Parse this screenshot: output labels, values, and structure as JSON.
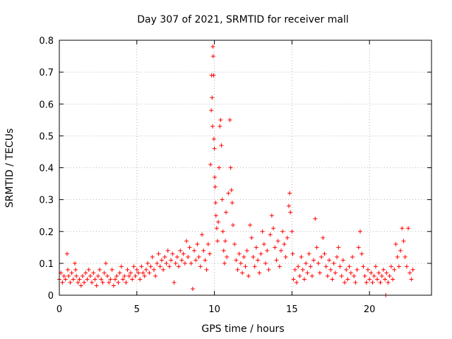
{
  "chart_data": {
    "type": "scatter",
    "title": "Day 307 of 2021, SRMTID for receiver mall",
    "xlabel": "GPS time / hours",
    "ylabel": "SRMTID / TECUs",
    "xlim": [
      0,
      24
    ],
    "ylim": [
      0,
      0.8
    ],
    "xticks": [
      "0",
      "5",
      "10",
      "15",
      "20"
    ],
    "xtick_values": [
      0,
      5,
      10,
      15,
      20
    ],
    "yticks": [
      "0",
      "0.1",
      "0.2",
      "0.3",
      "0.4",
      "0.5",
      "0.6",
      "0.7",
      "0.8"
    ],
    "ytick_values": [
      0,
      0.1,
      0.2,
      0.3,
      0.4,
      0.5,
      0.6,
      0.7,
      0.8
    ],
    "grid": true,
    "marker": "+",
    "color": "#ff0000",
    "series": [
      {
        "name": "SRMTID",
        "points": [
          [
            0.0,
            0.05
          ],
          [
            0.1,
            0.07
          ],
          [
            0.2,
            0.04
          ],
          [
            0.3,
            0.06
          ],
          [
            0.4,
            0.05
          ],
          [
            0.5,
            0.13
          ],
          [
            0.55,
            0.08
          ],
          [
            0.6,
            0.06
          ],
          [
            0.7,
            0.04
          ],
          [
            0.8,
            0.07
          ],
          [
            0.9,
            0.05
          ],
          [
            1.0,
            0.1
          ],
          [
            1.05,
            0.08
          ],
          [
            1.1,
            0.06
          ],
          [
            1.2,
            0.04
          ],
          [
            1.3,
            0.05
          ],
          [
            1.4,
            0.03
          ],
          [
            1.5,
            0.06
          ],
          [
            1.6,
            0.04
          ],
          [
            1.7,
            0.07
          ],
          [
            1.8,
            0.05
          ],
          [
            1.9,
            0.08
          ],
          [
            2.0,
            0.06
          ],
          [
            2.1,
            0.04
          ],
          [
            2.2,
            0.07
          ],
          [
            2.3,
            0.05
          ],
          [
            2.4,
            0.03
          ],
          [
            2.5,
            0.06
          ],
          [
            2.6,
            0.08
          ],
          [
            2.7,
            0.05
          ],
          [
            2.8,
            0.04
          ],
          [
            2.9,
            0.07
          ],
          [
            3.0,
            0.1
          ],
          [
            3.1,
            0.06
          ],
          [
            3.2,
            0.04
          ],
          [
            3.3,
            0.05
          ],
          [
            3.4,
            0.08
          ],
          [
            3.5,
            0.03
          ],
          [
            3.6,
            0.05
          ],
          [
            3.7,
            0.06
          ],
          [
            3.8,
            0.04
          ],
          [
            3.9,
            0.07
          ],
          [
            4.0,
            0.09
          ],
          [
            4.1,
            0.05
          ],
          [
            4.2,
            0.06
          ],
          [
            4.3,
            0.04
          ],
          [
            4.4,
            0.08
          ],
          [
            4.5,
            0.06
          ],
          [
            4.6,
            0.07
          ],
          [
            4.7,
            0.05
          ],
          [
            4.8,
            0.09
          ],
          [
            4.9,
            0.06
          ],
          [
            5.0,
            0.08
          ],
          [
            5.1,
            0.07
          ],
          [
            5.2,
            0.05
          ],
          [
            5.3,
            0.09
          ],
          [
            5.4,
            0.07
          ],
          [
            5.5,
            0.06
          ],
          [
            5.6,
            0.08
          ],
          [
            5.7,
            0.1
          ],
          [
            5.8,
            0.07
          ],
          [
            5.9,
            0.09
          ],
          [
            6.0,
            0.12
          ],
          [
            6.1,
            0.08
          ],
          [
            6.2,
            0.06
          ],
          [
            6.3,
            0.1
          ],
          [
            6.4,
            0.13
          ],
          [
            6.5,
            0.09
          ],
          [
            6.6,
            0.11
          ],
          [
            6.7,
            0.08
          ],
          [
            6.8,
            0.12
          ],
          [
            6.9,
            0.1
          ],
          [
            7.0,
            0.14
          ],
          [
            7.1,
            0.09
          ],
          [
            7.2,
            0.11
          ],
          [
            7.3,
            0.13
          ],
          [
            7.4,
            0.04
          ],
          [
            7.5,
            0.1
          ],
          [
            7.6,
            0.12
          ],
          [
            7.7,
            0.09
          ],
          [
            7.8,
            0.14
          ],
          [
            7.9,
            0.11
          ],
          [
            8.0,
            0.13
          ],
          [
            8.1,
            0.1
          ],
          [
            8.2,
            0.17
          ],
          [
            8.3,
            0.12
          ],
          [
            8.4,
            0.15
          ],
          [
            8.5,
            0.1
          ],
          [
            8.6,
            0.02
          ],
          [
            8.7,
            0.14
          ],
          [
            8.8,
            0.11
          ],
          [
            8.9,
            0.16
          ],
          [
            9.0,
            0.12
          ],
          [
            9.1,
            0.09
          ],
          [
            9.2,
            0.19
          ],
          [
            9.3,
            0.14
          ],
          [
            9.4,
            0.11
          ],
          [
            9.5,
            0.08
          ],
          [
            9.6,
            0.16
          ],
          [
            9.7,
            0.13
          ],
          [
            9.75,
            0.41
          ],
          [
            9.8,
            0.58
          ],
          [
            9.82,
            0.69
          ],
          [
            9.85,
            0.62
          ],
          [
            9.88,
            0.53
          ],
          [
            9.9,
            0.78
          ],
          [
            9.92,
            0.75
          ],
          [
            9.95,
            0.69
          ],
          [
            9.97,
            0.49
          ],
          [
            10.0,
            0.46
          ],
          [
            10.02,
            0.37
          ],
          [
            10.05,
            0.34
          ],
          [
            10.08,
            0.29
          ],
          [
            10.1,
            0.25
          ],
          [
            10.15,
            0.21
          ],
          [
            10.2,
            0.17
          ],
          [
            10.25,
            0.23
          ],
          [
            10.3,
            0.4
          ],
          [
            10.35,
            0.53
          ],
          [
            10.4,
            0.55
          ],
          [
            10.45,
            0.47
          ],
          [
            10.5,
            0.3
          ],
          [
            10.55,
            0.2
          ],
          [
            10.6,
            0.14
          ],
          [
            10.65,
            0.1
          ],
          [
            10.7,
            0.17
          ],
          [
            10.75,
            0.26
          ],
          [
            10.8,
            0.12
          ],
          [
            10.9,
            0.32
          ],
          [
            11.0,
            0.55
          ],
          [
            11.05,
            0.4
          ],
          [
            11.1,
            0.33
          ],
          [
            11.15,
            0.29
          ],
          [
            11.2,
            0.22
          ],
          [
            11.3,
            0.16
          ],
          [
            11.4,
            0.11
          ],
          [
            11.5,
            0.08
          ],
          [
            11.6,
            0.13
          ],
          [
            11.7,
            0.1
          ],
          [
            11.8,
            0.07
          ],
          [
            11.9,
            0.12
          ],
          [
            12.0,
            0.09
          ],
          [
            12.1,
            0.14
          ],
          [
            12.2,
            0.06
          ],
          [
            12.3,
            0.22
          ],
          [
            12.4,
            0.18
          ],
          [
            12.5,
            0.12
          ],
          [
            12.6,
            0.09
          ],
          [
            12.7,
            0.15
          ],
          [
            12.8,
            0.11
          ],
          [
            12.9,
            0.07
          ],
          [
            13.0,
            0.13
          ],
          [
            13.1,
            0.2
          ],
          [
            13.2,
            0.16
          ],
          [
            13.3,
            0.1
          ],
          [
            13.4,
            0.14
          ],
          [
            13.5,
            0.08
          ],
          [
            13.6,
            0.19
          ],
          [
            13.7,
            0.25
          ],
          [
            13.8,
            0.21
          ],
          [
            13.9,
            0.15
          ],
          [
            14.0,
            0.11
          ],
          [
            14.1,
            0.17
          ],
          [
            14.2,
            0.09
          ],
          [
            14.3,
            0.14
          ],
          [
            14.4,
            0.2
          ],
          [
            14.5,
            0.16
          ],
          [
            14.6,
            0.12
          ],
          [
            14.7,
            0.18
          ],
          [
            14.8,
            0.28
          ],
          [
            14.85,
            0.32
          ],
          [
            14.9,
            0.26
          ],
          [
            15.0,
            0.2
          ],
          [
            15.05,
            0.13
          ],
          [
            15.1,
            0.05
          ],
          [
            15.2,
            0.08
          ],
          [
            15.3,
            0.04
          ],
          [
            15.4,
            0.09
          ],
          [
            15.5,
            0.06
          ],
          [
            15.6,
            0.12
          ],
          [
            15.7,
            0.08
          ],
          [
            15.8,
            0.05
          ],
          [
            15.9,
            0.1
          ],
          [
            16.0,
            0.07
          ],
          [
            16.1,
            0.13
          ],
          [
            16.2,
            0.09
          ],
          [
            16.3,
            0.06
          ],
          [
            16.4,
            0.11
          ],
          [
            16.5,
            0.24
          ],
          [
            16.6,
            0.15
          ],
          [
            16.7,
            0.1
          ],
          [
            16.8,
            0.07
          ],
          [
            16.9,
            0.12
          ],
          [
            17.0,
            0.18
          ],
          [
            17.1,
            0.13
          ],
          [
            17.2,
            0.09
          ],
          [
            17.3,
            0.06
          ],
          [
            17.4,
            0.11
          ],
          [
            17.5,
            0.08
          ],
          [
            17.6,
            0.05
          ],
          [
            17.7,
            0.1
          ],
          [
            17.8,
            0.07
          ],
          [
            17.9,
            0.12
          ],
          [
            18.0,
            0.15
          ],
          [
            18.1,
            0.09
          ],
          [
            18.2,
            0.06
          ],
          [
            18.3,
            0.11
          ],
          [
            18.4,
            0.04
          ],
          [
            18.5,
            0.08
          ],
          [
            18.6,
            0.05
          ],
          [
            18.7,
            0.09
          ],
          [
            18.8,
            0.07
          ],
          [
            18.9,
            0.12
          ],
          [
            19.0,
            0.06
          ],
          [
            19.1,
            0.04
          ],
          [
            19.2,
            0.08
          ],
          [
            19.3,
            0.15
          ],
          [
            19.4,
            0.2
          ],
          [
            19.5,
            0.13
          ],
          [
            19.6,
            0.09
          ],
          [
            19.7,
            0.06
          ],
          [
            19.8,
            0.04
          ],
          [
            19.9,
            0.08
          ],
          [
            20.0,
            0.05
          ],
          [
            20.1,
            0.07
          ],
          [
            20.2,
            0.04
          ],
          [
            20.3,
            0.06
          ],
          [
            20.4,
            0.09
          ],
          [
            20.5,
            0.05
          ],
          [
            20.6,
            0.07
          ],
          [
            20.7,
            0.04
          ],
          [
            20.8,
            0.06
          ],
          [
            20.9,
            0.08
          ],
          [
            21.0,
            0.05
          ],
          [
            21.05,
            0.0
          ],
          [
            21.1,
            0.07
          ],
          [
            21.2,
            0.04
          ],
          [
            21.3,
            0.06
          ],
          [
            21.4,
            0.09
          ],
          [
            21.5,
            0.05
          ],
          [
            21.6,
            0.08
          ],
          [
            21.7,
            0.16
          ],
          [
            21.8,
            0.12
          ],
          [
            21.9,
            0.09
          ],
          [
            22.0,
            0.14
          ],
          [
            22.1,
            0.21
          ],
          [
            22.2,
            0.17
          ],
          [
            22.3,
            0.12
          ],
          [
            22.4,
            0.09
          ],
          [
            22.5,
            0.21
          ],
          [
            22.6,
            0.07
          ],
          [
            22.7,
            0.05
          ],
          [
            22.8,
            0.08
          ]
        ]
      }
    ]
  }
}
